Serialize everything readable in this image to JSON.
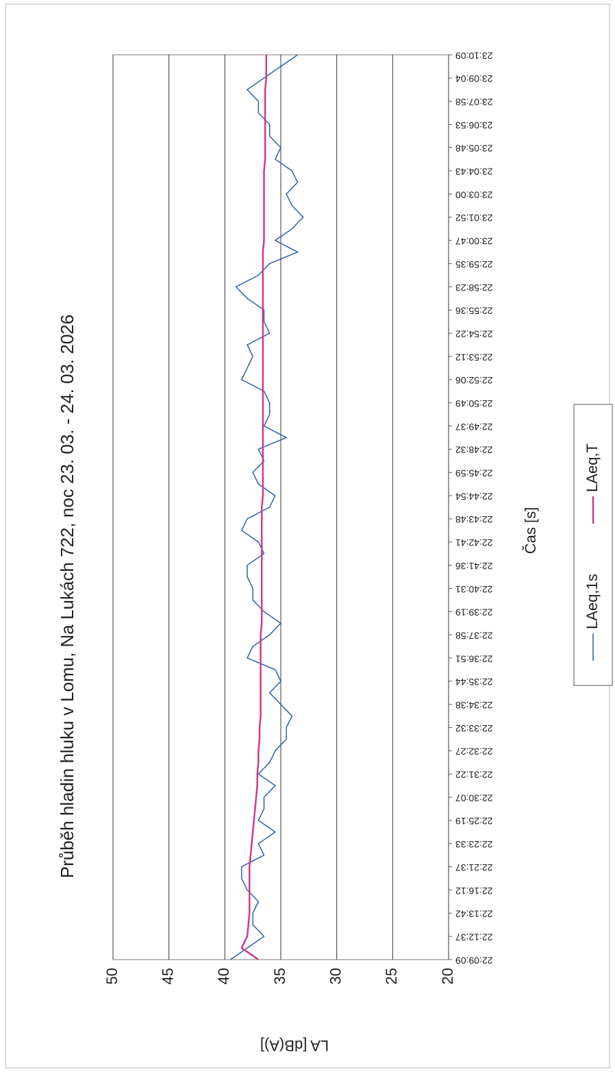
{
  "chart_data": {
    "type": "line",
    "title": "Průběh hladin hluku v Lomu, Na Lukách 722, noc 23. 03. - 24. 03. 2026",
    "x_label": "Čas [s]",
    "y_label": "LA [dB(A)]",
    "categories": [
      "22:09:09",
      null,
      "22:12:37",
      null,
      "22:13:42",
      null,
      "22:16:12",
      null,
      "22:21:37",
      null,
      "22:23:33",
      null,
      "22:25:19",
      null,
      "22:30:07",
      null,
      "22:31:22",
      null,
      "22:32:27",
      null,
      "22:33:32",
      null,
      "22:34:38",
      null,
      "22:35:44",
      null,
      "22:36:51",
      null,
      "22:37:58",
      null,
      "22:39:19",
      null,
      "22:40:31",
      null,
      "22:41:36",
      null,
      "22:42:41",
      null,
      "22:43:48",
      null,
      "22:44:54",
      null,
      "22:45:59",
      null,
      "22:48:32",
      null,
      "22:49:37",
      null,
      "22:50:49",
      null,
      "22:52:06",
      null,
      "22:53:12",
      null,
      "22:54:22",
      null,
      "22:55:36",
      null,
      "22:58:23",
      null,
      "22:59:35",
      null,
      "23:00:47",
      null,
      "23:01:52",
      null,
      "23:03:00",
      null,
      "23:04:43",
      null,
      "23:05:48",
      null,
      "23:06:53",
      null,
      "23:07:58",
      null,
      "23:09:04",
      null,
      "23:10:09"
    ],
    "series": [
      {
        "name": "LAeq,1s",
        "color": "#2f5fa8",
        "values": [
          39.5,
          38,
          36.5,
          37.5,
          37.5,
          37,
          38,
          38.5,
          38.5,
          36.5,
          37,
          35.5,
          37,
          36.5,
          36.5,
          35.5,
          37,
          36,
          35.5,
          34.5,
          34.5,
          34,
          35,
          36,
          35,
          35.5,
          38,
          37.5,
          36,
          35,
          36.5,
          37.5,
          37.5,
          38,
          38,
          36.5,
          37,
          38.5,
          38,
          36,
          35.5,
          37,
          37.5,
          36.5,
          37,
          34.5,
          36.5,
          36,
          36,
          36.5,
          38.5,
          38,
          37.5,
          38,
          36,
          36.5,
          36.5,
          38,
          39,
          37,
          36,
          33.5,
          35.5,
          34,
          33,
          34,
          34.5,
          33.5,
          34,
          35.5,
          35,
          36,
          36,
          37,
          37,
          38,
          36.5,
          35,
          33.5
        ]
      },
      {
        "name": "LAeq,T",
        "color": "#d0398a",
        "values": [
          37,
          38.5,
          38,
          37.9,
          37.8,
          37.8,
          37.8,
          37.8,
          37.8,
          37.7,
          37.6,
          37.5,
          37.4,
          37.3,
          37.2,
          37.1,
          37.1,
          37,
          37,
          36.9,
          36.9,
          36.8,
          36.8,
          36.8,
          36.8,
          36.8,
          36.8,
          36.8,
          36.8,
          36.7,
          36.7,
          36.7,
          36.7,
          36.7,
          36.7,
          36.7,
          36.7,
          36.7,
          36.7,
          36.7,
          36.6,
          36.6,
          36.6,
          36.6,
          36.6,
          36.6,
          36.6,
          36.6,
          36.6,
          36.6,
          36.6,
          36.6,
          36.6,
          36.6,
          36.6,
          36.6,
          36.6,
          36.6,
          36.6,
          36.6,
          36.6,
          36.6,
          36.5,
          36.5,
          36.5,
          36.5,
          36.5,
          36.5,
          36.5,
          36.4,
          36.4,
          36.4,
          36.4,
          36.4,
          36.4,
          36.4,
          36.3,
          36.3,
          36.3
        ]
      }
    ],
    "ylim": [
      20,
      50
    ],
    "yticks": [
      20,
      25,
      30,
      35,
      40,
      45,
      50
    ],
    "grid": true
  }
}
